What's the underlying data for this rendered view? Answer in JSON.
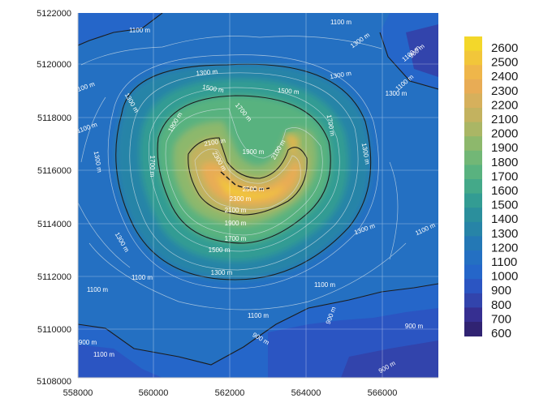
{
  "map": {
    "x_ticks": [
      "558000",
      "560000",
      "562000",
      "564000",
      "566000"
    ],
    "y_ticks": [
      "5122000",
      "5120000",
      "5118000",
      "5116000",
      "5114000",
      "5112000",
      "5110000",
      "5108000"
    ],
    "colorbar_labels": [
      "2600",
      "2500",
      "2400",
      "2300",
      "2200",
      "2100",
      "2000",
      "1900",
      "1800",
      "1700",
      "1600",
      "1500",
      "1400",
      "1300",
      "1200",
      "1100",
      "1000",
      "900",
      "800",
      "700",
      "600"
    ],
    "colorbar_colors": [
      "#f3d72a",
      "#f2c63a",
      "#efb64a",
      "#e8ac55",
      "#d6b05c",
      "#c3b25f",
      "#aab665",
      "#8db86c",
      "#72b776",
      "#59b27f",
      "#44a989",
      "#339c93",
      "#2b8f9c",
      "#2784a7",
      "#2478b5",
      "#2470c2",
      "#2566c9",
      "#2b55c2",
      "#3244ac",
      "#362f91",
      "#302372"
    ],
    "contour_labels": [
      "1100 m",
      "1100 m",
      "1100 m",
      "1300 m",
      "1300 m",
      "1500 m",
      "1700 m",
      "1100 m",
      "1300 m",
      "1500 m",
      "1900 m",
      "2100 m",
      "1900 m",
      "2100 m",
      "1700 m",
      "1100 m",
      "1300 m",
      "1300 m",
      "1700 m",
      "2300 m",
      "2500 m",
      "2300 m",
      "1300 m",
      "2100 m",
      "1900 m",
      "1700 m",
      "1500 m",
      "1300 m",
      "1300 m",
      "1100 m",
      "1300 m",
      "1100 m",
      "1100 m",
      "900 m",
      "1100 m",
      "900 m",
      "1100 m",
      "900 m",
      "900 m",
      "900 m",
      "1100 m",
      "1300 m",
      "1100 m",
      "900 m"
    ]
  }
}
